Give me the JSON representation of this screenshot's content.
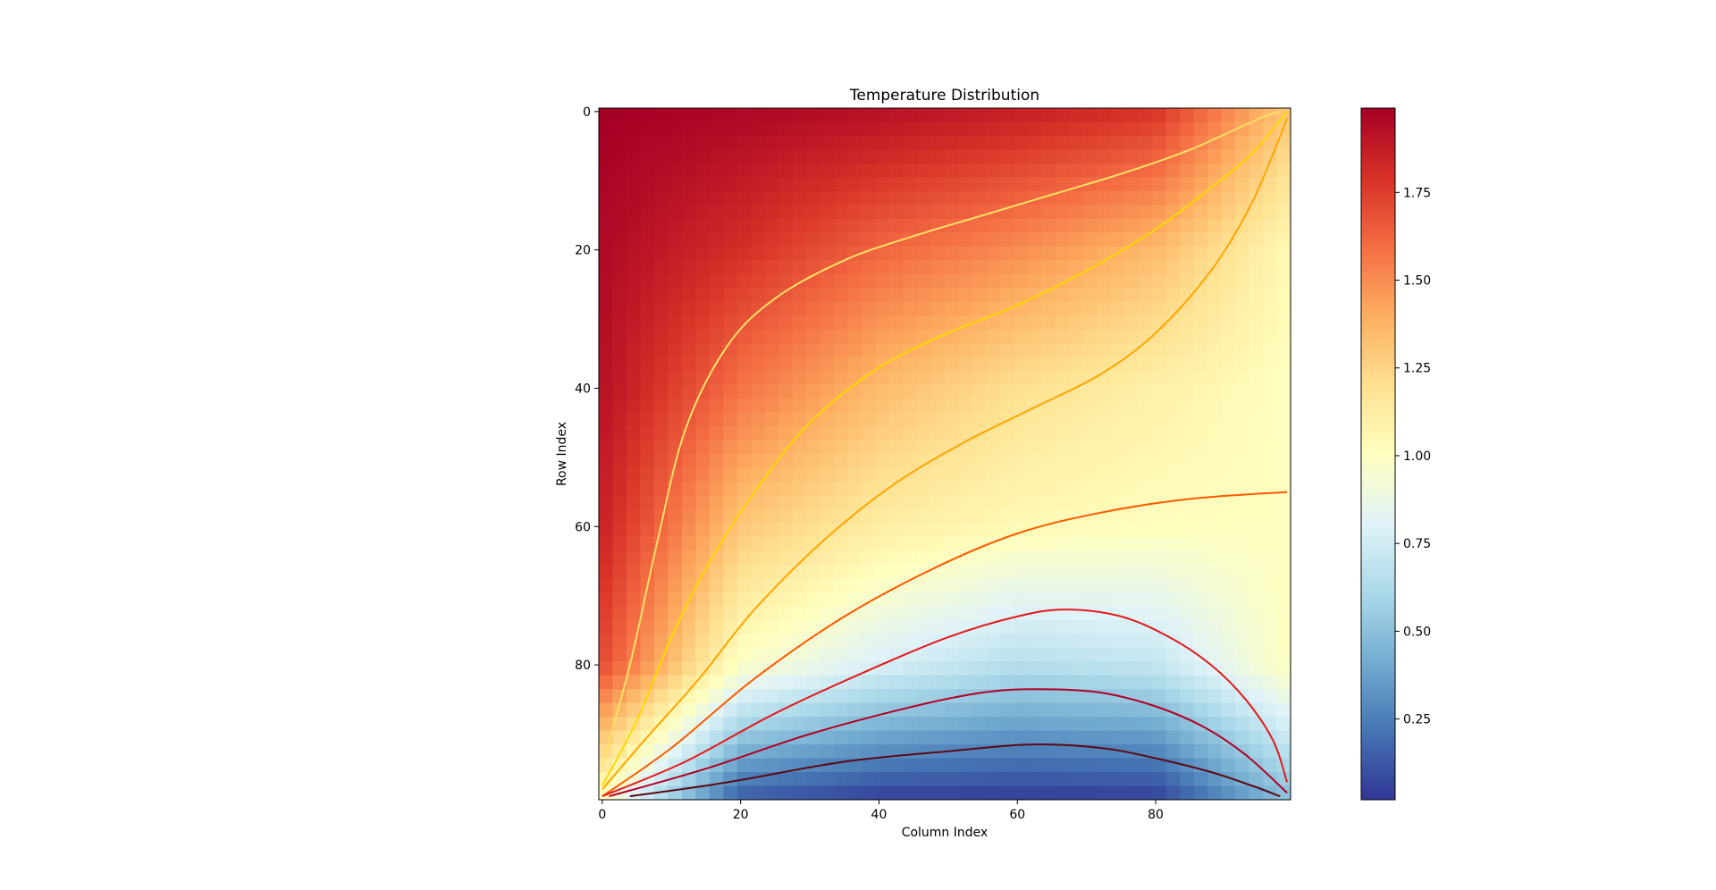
{
  "chart_data": {
    "type": "heatmap",
    "title": "Temperature Distribution",
    "xlabel": "Column Index",
    "ylabel": "Row Index",
    "xlim": [
      -0.5,
      99.5
    ],
    "ylim": [
      99.5,
      -0.5
    ],
    "x_ticks": [
      0,
      20,
      40,
      60,
      80
    ],
    "y_ticks": [
      0,
      20,
      40,
      60,
      80
    ],
    "colormap": "RdYlBu_r",
    "colormap_stops": [
      "#313695",
      "#4575b4",
      "#74add1",
      "#abd9e9",
      "#e0f3f8",
      "#ffffbf",
      "#fee090",
      "#fdae61",
      "#f46d43",
      "#d73027",
      "#a50026"
    ],
    "colorbar": {
      "range": [
        0.02,
        1.99
      ],
      "ticks": [
        0.25,
        0.5,
        0.75,
        1.0,
        1.25,
        1.5,
        1.75
      ],
      "tick_labels": [
        "0.25",
        "0.50",
        "0.75",
        "1.00",
        "1.25",
        "1.50",
        "1.75"
      ]
    },
    "field_samples": {
      "description_of_grid": "approximate temperature at sampled cells",
      "rows": [
        0,
        20,
        40,
        60,
        80,
        99
      ],
      "cols": [
        0,
        20,
        40,
        60,
        80,
        99
      ],
      "values": [
        [
          1.99,
          1.96,
          1.92,
          1.86,
          1.78,
          1.3
        ],
        [
          1.95,
          1.8,
          1.62,
          1.5,
          1.35,
          1.05
        ],
        [
          1.92,
          1.58,
          1.35,
          1.2,
          1.1,
          1.0
        ],
        [
          1.85,
          1.3,
          1.12,
          1.04,
          1.01,
          1.0
        ],
        [
          1.7,
          0.98,
          0.78,
          0.65,
          0.7,
          1.0
        ],
        [
          1.0,
          0.15,
          0.06,
          0.05,
          0.06,
          0.5
        ]
      ]
    },
    "contours": [
      {
        "color": "#ffe066",
        "points": [
          [
            0,
            94.5
          ],
          [
            4,
            80
          ],
          [
            8,
            62
          ],
          [
            12,
            46
          ],
          [
            18,
            34
          ],
          [
            25,
            27
          ],
          [
            35,
            21.5
          ],
          [
            45,
            18
          ],
          [
            55,
            15
          ],
          [
            65,
            12
          ],
          [
            75,
            9
          ],
          [
            85,
            5.5
          ],
          [
            95,
            1
          ],
          [
            98,
            0
          ]
        ]
      },
      {
        "color": "#ffd700",
        "points": [
          [
            0,
            97.5
          ],
          [
            5,
            88
          ],
          [
            10,
            76
          ],
          [
            15,
            66
          ],
          [
            22,
            55
          ],
          [
            30,
            45
          ],
          [
            40,
            37
          ],
          [
            50,
            32
          ],
          [
            60,
            28
          ],
          [
            70,
            23
          ],
          [
            80,
            17
          ],
          [
            88,
            11
          ],
          [
            94,
            6
          ],
          [
            99,
            0
          ]
        ]
      },
      {
        "color": "#ffa500",
        "points": [
          [
            0,
            98
          ],
          [
            6,
            91
          ],
          [
            14,
            82
          ],
          [
            22,
            72
          ],
          [
            32,
            62
          ],
          [
            42,
            54
          ],
          [
            52,
            48
          ],
          [
            62,
            43
          ],
          [
            72,
            38
          ],
          [
            80,
            32
          ],
          [
            88,
            23
          ],
          [
            94,
            13
          ],
          [
            99,
            1
          ]
        ]
      },
      {
        "color": "#ff5a00",
        "points": [
          [
            0,
            99
          ],
          [
            10,
            92
          ],
          [
            22,
            82
          ],
          [
            35,
            73
          ],
          [
            48,
            66
          ],
          [
            60,
            61
          ],
          [
            72,
            58
          ],
          [
            85,
            56
          ],
          [
            99,
            55
          ]
        ]
      },
      {
        "color": "#e31a1c",
        "points": [
          [
            0,
            99
          ],
          [
            12,
            94
          ],
          [
            25,
            87
          ],
          [
            38,
            81
          ],
          [
            50,
            76
          ],
          [
            60,
            73
          ],
          [
            67,
            72
          ],
          [
            75,
            73
          ],
          [
            82,
            76
          ],
          [
            88,
            80
          ],
          [
            93,
            85
          ],
          [
            97,
            91
          ],
          [
            99,
            97
          ]
        ]
      },
      {
        "color": "#b10026",
        "points": [
          [
            1,
            99
          ],
          [
            15,
            95
          ],
          [
            30,
            90
          ],
          [
            45,
            86
          ],
          [
            55,
            84
          ],
          [
            63,
            83.5
          ],
          [
            72,
            84
          ],
          [
            80,
            86
          ],
          [
            87,
            89
          ],
          [
            93,
            93
          ],
          [
            99,
            98.5
          ]
        ]
      },
      {
        "color": "#5a0a14",
        "points": [
          [
            4,
            99
          ],
          [
            18,
            97
          ],
          [
            35,
            94
          ],
          [
            50,
            92.5
          ],
          [
            62,
            91.5
          ],
          [
            72,
            92
          ],
          [
            80,
            93.5
          ],
          [
            88,
            95.5
          ],
          [
            94,
            97.5
          ],
          [
            98,
            99
          ]
        ]
      }
    ]
  }
}
